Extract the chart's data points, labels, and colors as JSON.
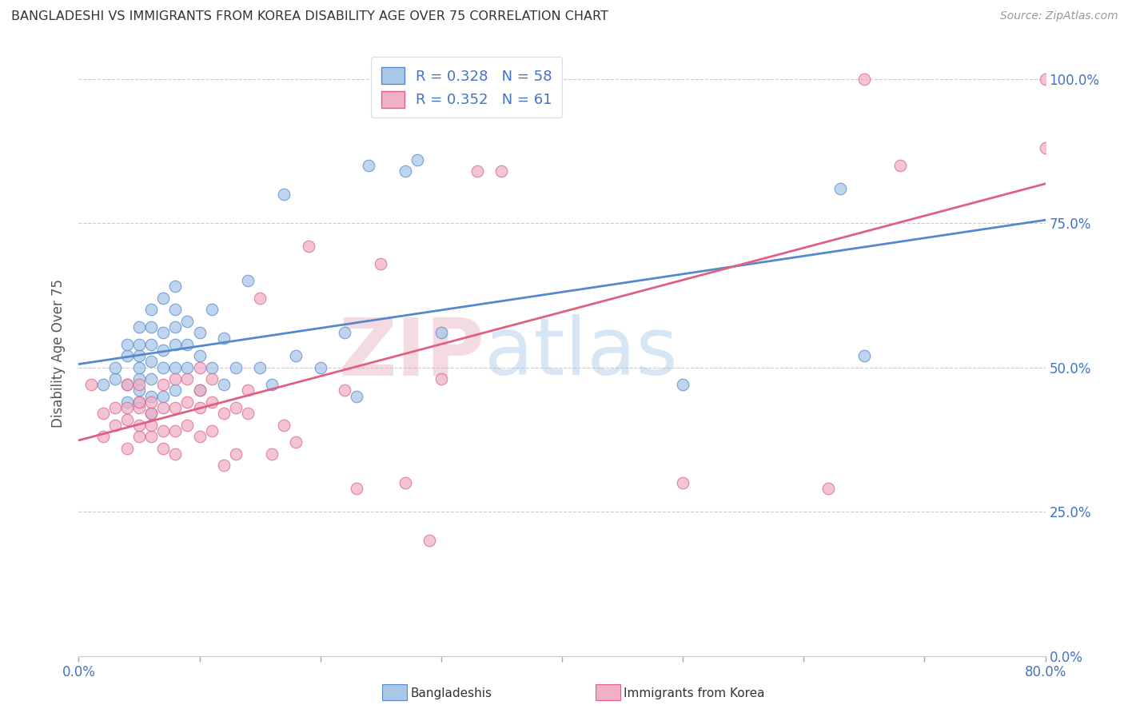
{
  "title": "BANGLADESHI VS IMMIGRANTS FROM KOREA DISABILITY AGE OVER 75 CORRELATION CHART",
  "source": "Source: ZipAtlas.com",
  "ylabel": "Disability Age Over 75",
  "legend_blue_R": "0.328",
  "legend_blue_N": "58",
  "legend_pink_R": "0.352",
  "legend_pink_N": "61",
  "legend_label_blue": "Bangladeshis",
  "legend_label_pink": "Immigrants from Korea",
  "blue_color": "#a8c8e8",
  "pink_color": "#f0b0c8",
  "blue_line_color": "#5588cc",
  "pink_line_color": "#e06080",
  "watermark_zip": "ZIP",
  "watermark_atlas": "atlas",
  "blue_scatter_x": [
    0.02,
    0.03,
    0.03,
    0.04,
    0.04,
    0.04,
    0.04,
    0.05,
    0.05,
    0.05,
    0.05,
    0.05,
    0.05,
    0.05,
    0.06,
    0.06,
    0.06,
    0.06,
    0.06,
    0.06,
    0.06,
    0.07,
    0.07,
    0.07,
    0.07,
    0.07,
    0.08,
    0.08,
    0.08,
    0.08,
    0.08,
    0.08,
    0.09,
    0.09,
    0.09,
    0.1,
    0.1,
    0.1,
    0.11,
    0.11,
    0.12,
    0.12,
    0.13,
    0.14,
    0.15,
    0.16,
    0.17,
    0.18,
    0.2,
    0.22,
    0.23,
    0.24,
    0.27,
    0.28,
    0.3,
    0.5,
    0.63,
    0.65
  ],
  "blue_scatter_y": [
    0.47,
    0.48,
    0.5,
    0.44,
    0.47,
    0.52,
    0.54,
    0.44,
    0.46,
    0.48,
    0.5,
    0.52,
    0.54,
    0.57,
    0.42,
    0.45,
    0.48,
    0.51,
    0.54,
    0.57,
    0.6,
    0.45,
    0.5,
    0.53,
    0.56,
    0.62,
    0.46,
    0.5,
    0.54,
    0.57,
    0.6,
    0.64,
    0.5,
    0.54,
    0.58,
    0.46,
    0.52,
    0.56,
    0.5,
    0.6,
    0.47,
    0.55,
    0.5,
    0.65,
    0.5,
    0.47,
    0.8,
    0.52,
    0.5,
    0.56,
    0.45,
    0.85,
    0.84,
    0.86,
    0.56,
    0.47,
    0.81,
    0.52
  ],
  "pink_scatter_x": [
    0.01,
    0.02,
    0.02,
    0.03,
    0.03,
    0.04,
    0.04,
    0.04,
    0.04,
    0.05,
    0.05,
    0.05,
    0.05,
    0.05,
    0.06,
    0.06,
    0.06,
    0.06,
    0.07,
    0.07,
    0.07,
    0.07,
    0.08,
    0.08,
    0.08,
    0.08,
    0.09,
    0.09,
    0.09,
    0.1,
    0.1,
    0.1,
    0.1,
    0.11,
    0.11,
    0.11,
    0.12,
    0.12,
    0.13,
    0.13,
    0.14,
    0.14,
    0.15,
    0.16,
    0.17,
    0.18,
    0.19,
    0.22,
    0.23,
    0.25,
    0.27,
    0.29,
    0.3,
    0.33,
    0.35,
    0.5,
    0.62,
    0.65,
    0.68,
    0.8,
    0.8
  ],
  "pink_scatter_y": [
    0.47,
    0.38,
    0.42,
    0.4,
    0.43,
    0.36,
    0.41,
    0.43,
    0.47,
    0.38,
    0.4,
    0.43,
    0.44,
    0.47,
    0.38,
    0.4,
    0.42,
    0.44,
    0.36,
    0.39,
    0.43,
    0.47,
    0.35,
    0.39,
    0.43,
    0.48,
    0.4,
    0.44,
    0.48,
    0.38,
    0.43,
    0.46,
    0.5,
    0.39,
    0.44,
    0.48,
    0.33,
    0.42,
    0.35,
    0.43,
    0.42,
    0.46,
    0.62,
    0.35,
    0.4,
    0.37,
    0.71,
    0.46,
    0.29,
    0.68,
    0.3,
    0.2,
    0.48,
    0.84,
    0.84,
    0.3,
    0.29,
    1.0,
    0.85,
    0.88,
    1.0
  ],
  "xmin": 0.0,
  "xmax": 0.8,
  "ymin": 0.0,
  "ymax": 1.05,
  "grid_color": "#cccccc",
  "tick_color": "#4472c4"
}
